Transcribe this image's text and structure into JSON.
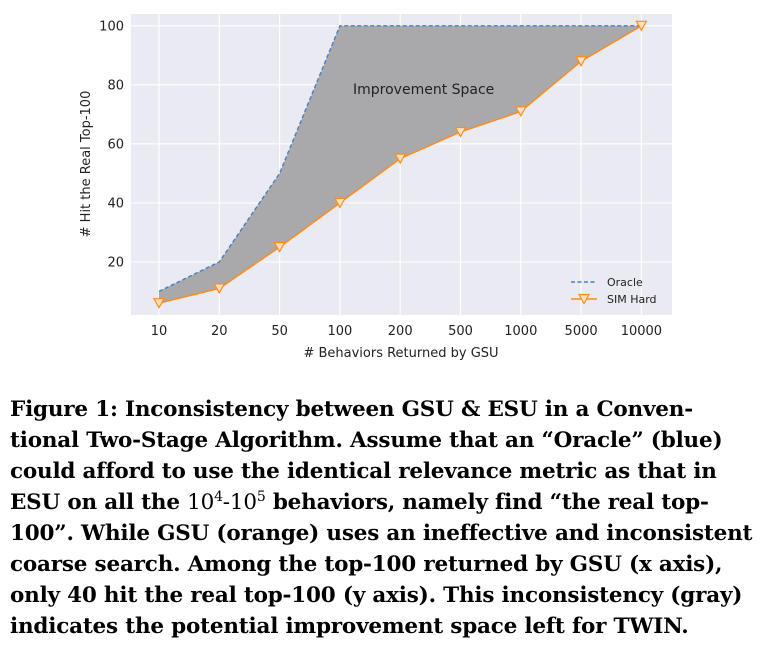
{
  "chart_data": {
    "type": "line",
    "xlabel": "# Behaviors Returned by GSU",
    "ylabel": "# Hit the Real Top-100",
    "categories": [
      "10",
      "20",
      "50",
      "100",
      "200",
      "500",
      "1000",
      "5000",
      "10000"
    ],
    "yticks": [
      20,
      40,
      60,
      80,
      100
    ],
    "ylim": [
      2,
      104
    ],
    "series": [
      {
        "name": "Oracle",
        "values": [
          10,
          20,
          50,
          100,
          100,
          100,
          100,
          100,
          100
        ],
        "color": "#4a7ec0",
        "style": "dashed"
      },
      {
        "name": "SIM Hard",
        "values": [
          6,
          11,
          25,
          40,
          55,
          64,
          71,
          88,
          100
        ],
        "color": "#ff8c1a",
        "marker": "triangle-down"
      }
    ],
    "fill_between": {
      "color": "#a9a9ab",
      "label": "Improvement Space"
    },
    "annotation": "Improvement Space",
    "legend_position": "lower-right",
    "grid": true,
    "background": "#eaeaf2"
  },
  "caption": {
    "p1": "Figure 1: Inconsistency between GSU & ESU in a Conven-tional Two-Stage Algorithm. Assume that an “Oracle” (blue) could afford to use the identical relevance metric as that in ESU on all the ",
    "b1": "10",
    "e1": "4",
    "sep": "-",
    "b2": "10",
    "e2": "5",
    "p2": " behaviors, namely find “the real top-100”. While GSU (orange) uses an ineffective and inconsistent coarse search. Among the top-100 returned by GSU (x axis), only 40 hit the real top-100 (y axis). This inconsistency (gray) indicates the potential improvement space left for TWIN."
  }
}
